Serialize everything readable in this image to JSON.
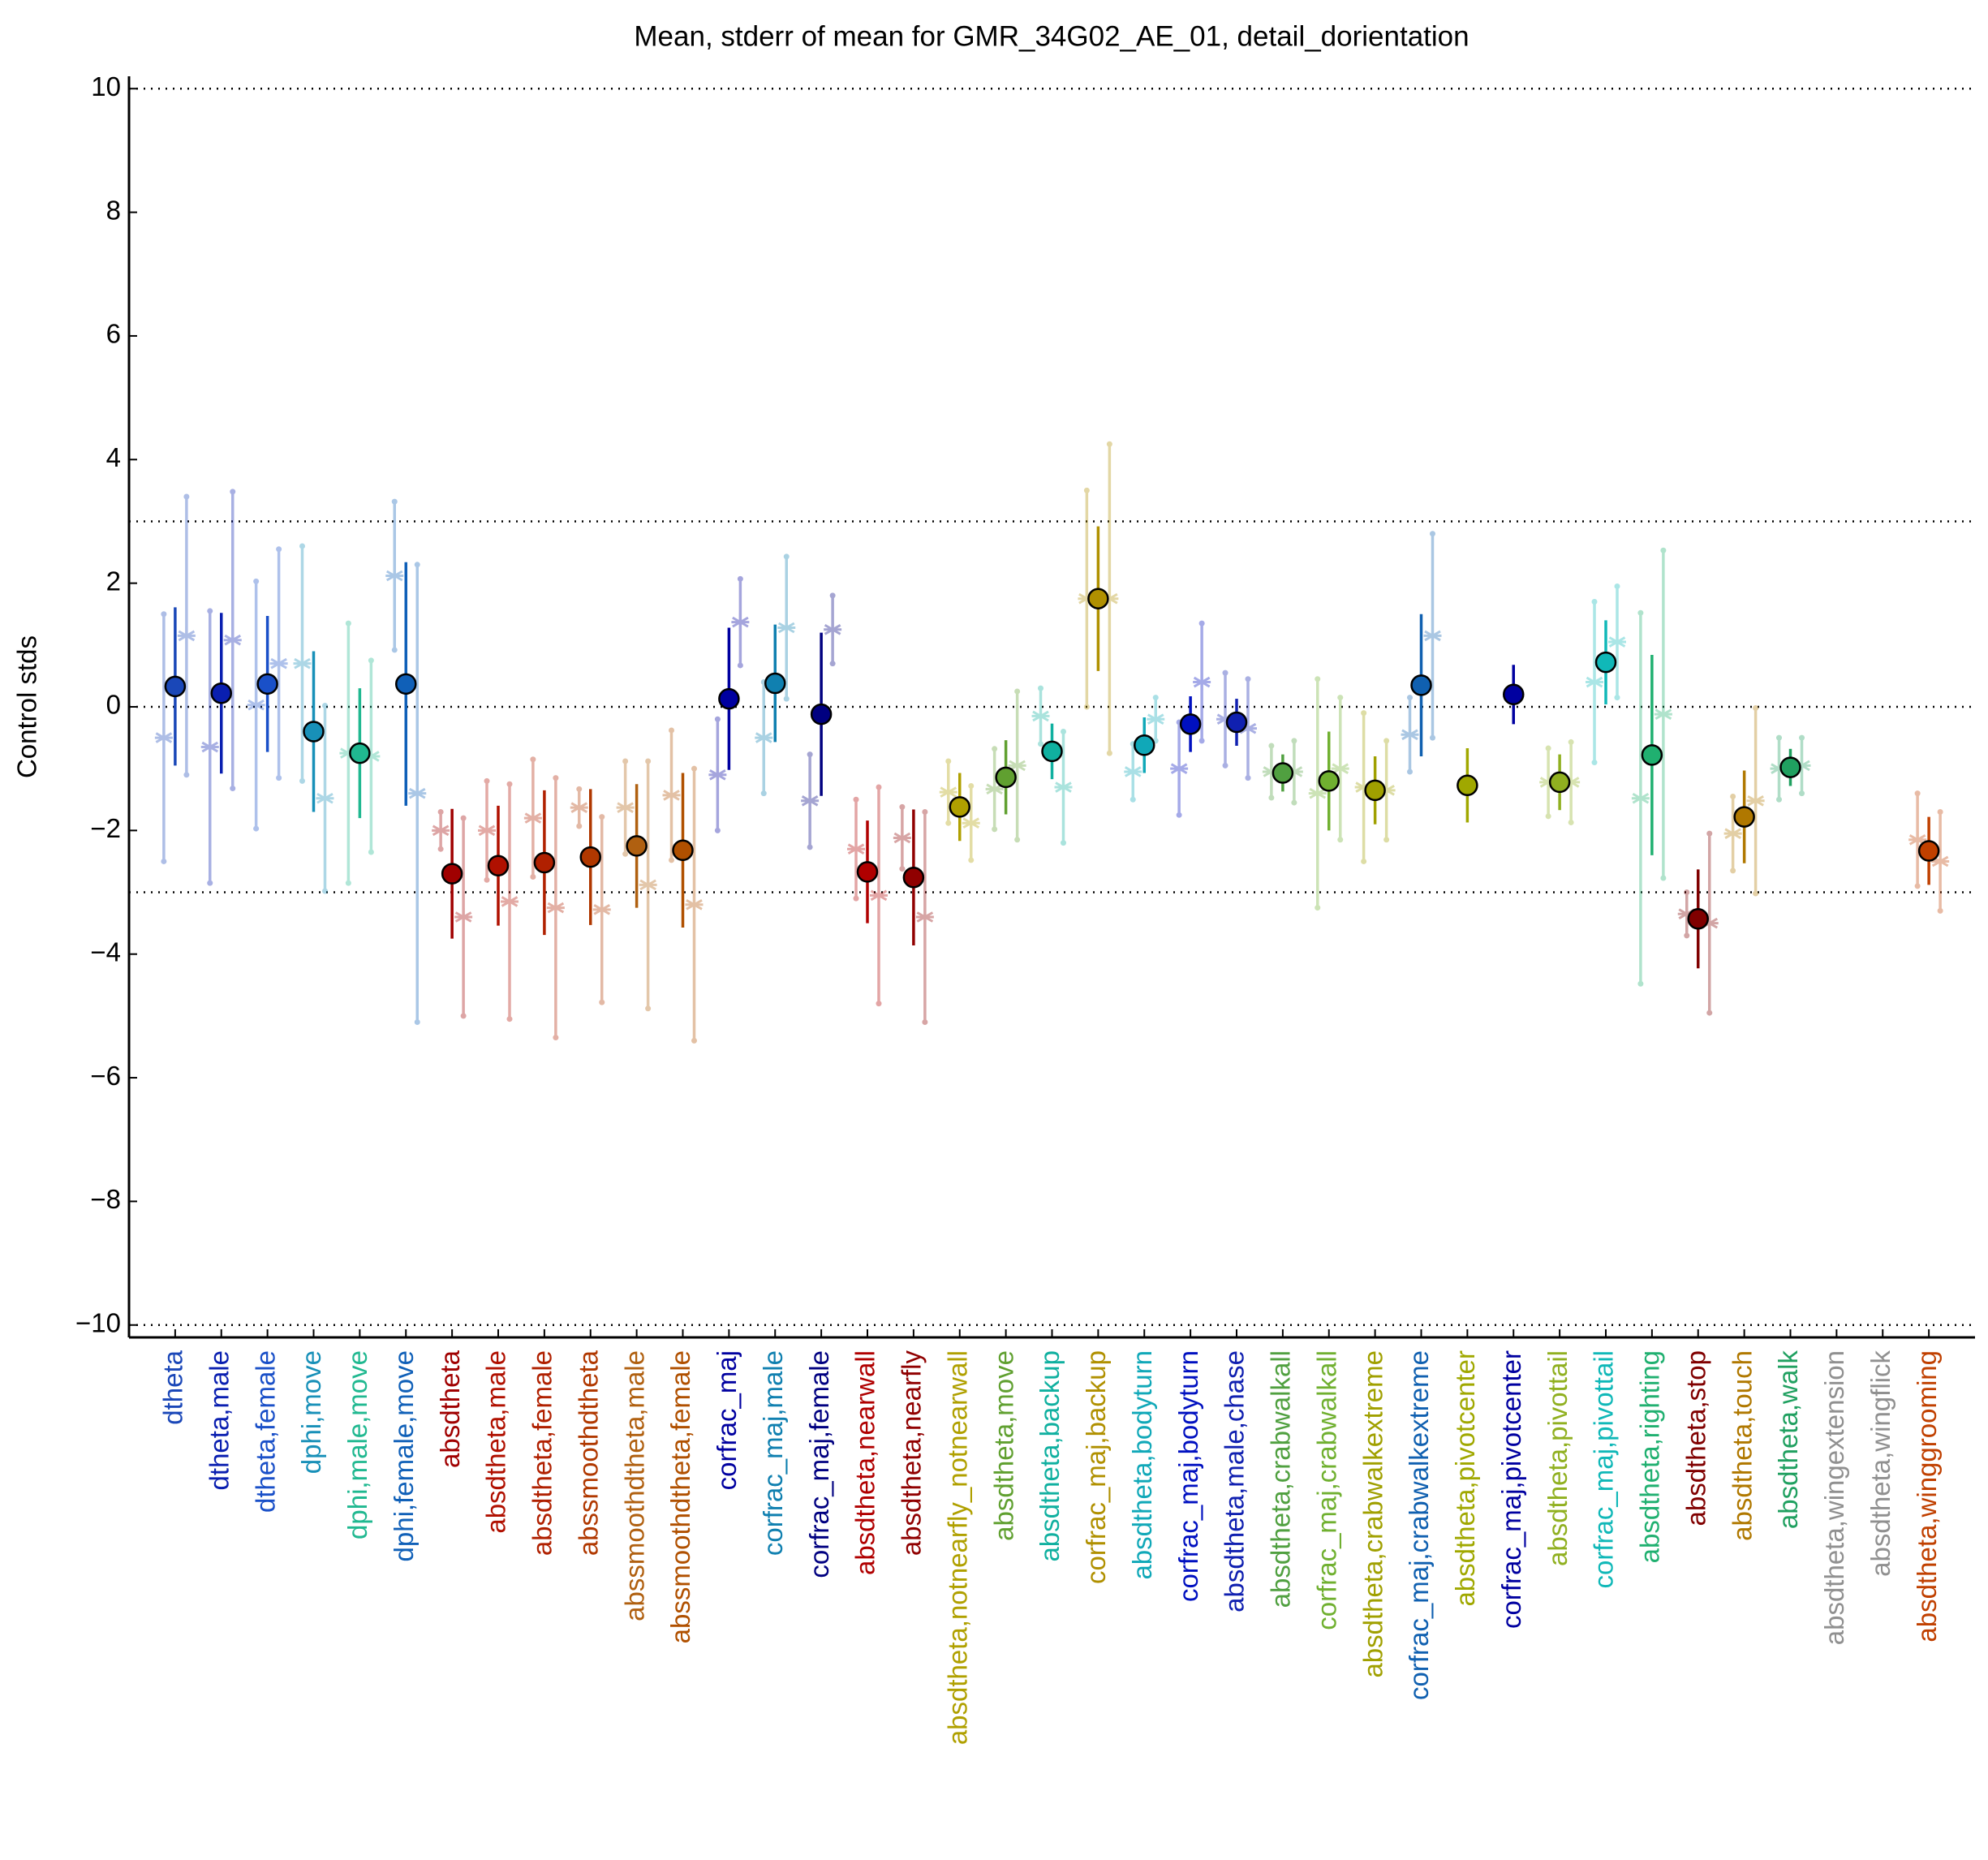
{
  "chart_data": {
    "type": "errorbar",
    "title": "Mean, stderr of mean for GMR_34G02_AE_01, detail_dorientation",
    "y_label": "Control stds",
    "categories": [
      "dtheta",
      "dtheta,male",
      "dtheta,female",
      "dphi,move",
      "dphi,male,move",
      "dphi,female,move",
      "absdtheta",
      "absdtheta,male",
      "absdtheta,female",
      "abssmoothdtheta",
      "abssmoothdtheta,male",
      "abssmoothdtheta,female",
      "corfrac_maj",
      "corfrac_maj,male",
      "corfrac_maj,female",
      "absdtheta,nearwall",
      "absdtheta,nearfly",
      "absdtheta,notnearfly_notnearwall",
      "absdtheta,move",
      "absdtheta,backup",
      "corfrac_maj,backup",
      "absdtheta,bodyturn",
      "corfrac_maj,bodyturn",
      "absdtheta,male,chase",
      "absdtheta,crabwalkall",
      "corfrac_maj,crabwalkall",
      "absdtheta,crabwalkextreme",
      "corfrac_maj,crabwalkextreme",
      "absdtheta,pivotcenter",
      "corfrac_maj,pivotcenter",
      "absdtheta,pivottail",
      "corfrac_maj,pivottail",
      "absdtheta,righting",
      "absdtheta,stop",
      "absdtheta,touch",
      "absdtheta,walk",
      "absdtheta,wingextension",
      "absdtheta,wingflick",
      "absdtheta,winggrooming"
    ],
    "colors": [
      "#1a47b8",
      "#0a1fb0",
      "#1a50c8",
      "#1890b8",
      "#20b890",
      "#1060b8",
      "#a00000",
      "#b01000",
      "#b02000",
      "#b03800",
      "#b06010",
      "#b05000",
      "#0000a0",
      "#1080b0",
      "#000080",
      "#b00000",
      "#900000",
      "#b0a000",
      "#60a030",
      "#10b0a0",
      "#b09000",
      "#10a8b8",
      "#0010c0",
      "#1020b0",
      "#50a040",
      "#70b030",
      "#a0a000",
      "#1060b0",
      "#a0a800",
      "#0000a0",
      "#90b020",
      "#10b8b8",
      "#20b070",
      "#800000",
      "#b07800",
      "#20a060",
      "#909090",
      "#909090",
      "#c04000"
    ],
    "series": [
      {
        "marker": "circle",
        "opacity": 1,
        "values": [
          0.33,
          0.22,
          0.37,
          -0.4,
          -0.75,
          0.37,
          -2.7,
          -2.57,
          -2.52,
          -2.43,
          -2.25,
          -2.32,
          0.13,
          0.38,
          -0.12,
          -2.67,
          -2.76,
          -1.62,
          -1.14,
          -0.72,
          1.75,
          -0.62,
          -0.28,
          -0.25,
          -1.07,
          -1.2,
          -1.35,
          0.35,
          -1.27,
          0.2,
          -1.22,
          0.72,
          -0.78,
          -3.43,
          -1.78,
          -0.98,
          null,
          null,
          -2.33
        ],
        "errors": [
          1.28,
          1.3,
          1.1,
          1.3,
          1.05,
          1.97,
          1.05,
          0.97,
          1.17,
          1.1,
          1.0,
          1.25,
          1.15,
          0.95,
          1.32,
          0.83,
          1.1,
          0.55,
          0.6,
          0.45,
          1.17,
          0.45,
          0.45,
          0.38,
          0.3,
          0.8,
          0.55,
          1.15,
          0.6,
          0.48,
          0.45,
          0.68,
          1.62,
          0.8,
          0.75,
          0.3,
          null,
          null,
          0.55
        ]
      },
      {
        "marker": "asterisk",
        "opacity": 0.35,
        "values": [
          -0.5,
          -0.65,
          0.03,
          0.7,
          -0.75,
          2.12,
          -2.0,
          -2.0,
          -1.8,
          -1.63,
          -1.63,
          -1.43,
          -1.1,
          -0.5,
          -1.52,
          -2.3,
          -2.12,
          -1.38,
          -1.33,
          -0.15,
          1.75,
          -1.05,
          -1.0,
          -0.2,
          -1.05,
          -1.4,
          -1.3,
          -0.45,
          null,
          null,
          -1.22,
          0.4,
          -1.48,
          -3.35,
          -2.05,
          -1.0,
          null,
          null,
          -2.15
        ],
        "errors": [
          2.0,
          2.2,
          2.0,
          1.9,
          2.1,
          1.2,
          0.3,
          0.8,
          0.95,
          0.3,
          0.75,
          1.05,
          0.9,
          0.9,
          0.75,
          0.8,
          0.5,
          0.5,
          0.65,
          0.45,
          1.75,
          0.45,
          0.75,
          0.75,
          0.42,
          1.85,
          1.2,
          0.6,
          null,
          null,
          0.55,
          1.3,
          3.0,
          0.35,
          0.6,
          0.5,
          null,
          null,
          0.75
        ]
      },
      {
        "marker": "asterisk",
        "opacity": 0.35,
        "values": [
          1.15,
          1.08,
          0.7,
          -1.48,
          -0.8,
          -1.4,
          -3.4,
          -3.15,
          -3.25,
          -3.28,
          -2.88,
          -3.2,
          1.37,
          1.28,
          1.25,
          -3.05,
          -3.4,
          -1.88,
          -0.95,
          -1.3,
          1.75,
          -0.2,
          0.4,
          -0.35,
          -1.05,
          -1.0,
          -1.35,
          1.15,
          null,
          null,
          -1.22,
          1.05,
          -0.12,
          -3.5,
          -1.52,
          -0.95,
          null,
          null,
          -2.5
        ],
        "errors": [
          2.25,
          2.4,
          1.85,
          1.5,
          1.55,
          3.7,
          1.6,
          1.9,
          2.1,
          1.5,
          2.0,
          2.2,
          0.7,
          1.15,
          0.55,
          1.75,
          1.7,
          0.6,
          1.2,
          0.9,
          2.5,
          0.35,
          0.95,
          0.8,
          0.5,
          1.15,
          0.8,
          1.65,
          null,
          null,
          0.65,
          0.9,
          2.65,
          1.45,
          1.5,
          0.45,
          null,
          null,
          0.8
        ]
      }
    ],
    "ylim": [
      -10.2,
      10.2
    ],
    "yticks": [
      {
        "value": -10,
        "label": "−10"
      },
      {
        "value": -8,
        "label": "−8"
      },
      {
        "value": -6,
        "label": "−6"
      },
      {
        "value": -4,
        "label": "−4"
      },
      {
        "value": -2,
        "label": "−2"
      },
      0,
      2,
      4,
      6,
      8,
      10
    ],
    "reference_lines": [
      -10,
      -3,
      0,
      3,
      10
    ]
  }
}
